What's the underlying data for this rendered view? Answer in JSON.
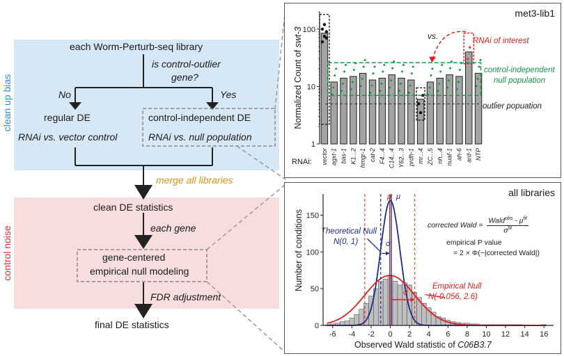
{
  "colors": {
    "blue_band": "#d6e7f5",
    "red_band": "#f7dedd",
    "blue_text": "#2b8fcf",
    "red_text": "#e0333a",
    "orange_text": "#d9930f",
    "green": "#159a47",
    "darkblue": "#1f2a8a",
    "red": "#e02020",
    "bar_fill": "#a3a3a3"
  },
  "flow": {
    "side_top": "clean up bias",
    "side_bottom": "control noise",
    "library": "each Worm-Perturb-seq library",
    "question_1": "is control-outlier",
    "question_2": "gene?",
    "no": "No",
    "yes": "Yes",
    "regular_de": "regular DE",
    "rnai_vs_vector": "RNAi vs. vector control",
    "ci_de": "control-independent DE",
    "rnai_vs_null": "RNAi vs. null population",
    "merge": "merge all libraries",
    "clean": "clean DE statistics",
    "each_gene": "each gene",
    "emp_1": "gene-centered",
    "emp_2": "empirical null modeling",
    "fdr": "FDR adjustment",
    "final": "final DE statistics"
  },
  "top_chart": {
    "title": "met3-lib1",
    "ylabel_prefix": "Normalized Count of ",
    "ylabel_gene": "swt-3",
    "rnai_prefix": "RNAi:",
    "yticks": [
      "1",
      "10",
      "100"
    ],
    "vs_label": "vs.",
    "interest_label": "RNAi of interest",
    "null_label_1": "control-independent",
    "null_label_2": "null population",
    "outlier_label": "outlier popuation"
  },
  "bottom_chart": {
    "title": "all libraries",
    "ylabel": "Number of conditions",
    "xlabel_prefix": "Observed Wald statistic of ",
    "xlabel_gene": "C06B3.7",
    "xticks": [
      "-6",
      "-4",
      "-2",
      "0",
      "2",
      "4",
      "6",
      "8",
      "10",
      "12",
      "14",
      "16"
    ],
    "yticks": [
      "0",
      "50",
      "100",
      "150"
    ],
    "theo_1": "Theoretical Null",
    "theo_2": "N(0, 1)",
    "emp_1": "Empirical Null",
    "emp_2": "N(-0.056, 2.6)",
    "mu_fit": "μ",
    "mu": "μ",
    "sigma": "σ",
    "sigma_fit": "σ",
    "corrected_label": "corrected Wald =",
    "numer": "Wald",
    "numer_sup": "obs",
    "numer_rest": " - μ",
    "numer_sup2": "fit",
    "denom": "σ",
    "denom_sup": "fit",
    "pval_1": "empirical P value",
    "pval_2": "= 2 × Φ(−|corrected Wald|)"
  },
  "chart_data": [
    {
      "type": "bar",
      "title": "met3-lib1",
      "ylabel": "Normalized Count of swt-3",
      "xlabel": "RNAi:",
      "yscale": "log",
      "ylim": [
        1,
        200
      ],
      "categories": [
        "vector",
        "agxt-1",
        "bas-1",
        "K1...2",
        "hmgr-1",
        "cat-2",
        "F4...4",
        "C14...4",
        "Y62...3",
        "prdh-1",
        "mr...4",
        "ZC...5",
        "nh...4",
        "nuaf-1",
        "ah-6",
        "ard-1",
        "NTP"
      ],
      "values": [
        85,
        12,
        14,
        15,
        17,
        13,
        14,
        16,
        14,
        13,
        6,
        12,
        14,
        16,
        15,
        40,
        17
      ]
    },
    {
      "type": "bar",
      "title": "all libraries",
      "xlabel": "Observed Wald statistic of C06B3.7",
      "ylabel": "Number of conditions",
      "xlim": [
        -7,
        17
      ],
      "ylim": [
        0,
        175
      ],
      "x": [
        -6.5,
        -6,
        -5.5,
        -5,
        -4.5,
        -4,
        -3.5,
        -3,
        -2.5,
        -2,
        -1.5,
        -1,
        -0.5,
        0,
        0.5,
        1,
        1.5,
        2,
        2.5,
        3,
        3.5,
        4,
        4.5,
        5,
        5.5,
        6,
        6.5,
        7,
        7.5,
        8,
        8.5,
        9,
        9.5,
        10,
        10.5,
        11,
        11.5,
        12,
        12.5,
        13,
        13.5,
        14,
        14.5,
        15,
        15.5,
        16
      ],
      "values": [
        1,
        2,
        3,
        5,
        6,
        10,
        15,
        22,
        30,
        40,
        50,
        60,
        63,
        68,
        60,
        55,
        58,
        55,
        45,
        38,
        30,
        24,
        18,
        12,
        10,
        7,
        5,
        4,
        3,
        3,
        2,
        2,
        1,
        1,
        1,
        1,
        1,
        1,
        1,
        1,
        1,
        0,
        0,
        0,
        0,
        1
      ],
      "series": [
        {
          "name": "Theoretical Null",
          "distribution": "N(0, 1)"
        },
        {
          "name": "Empirical Null",
          "distribution": "N(-0.056, 2.6)"
        }
      ]
    }
  ]
}
